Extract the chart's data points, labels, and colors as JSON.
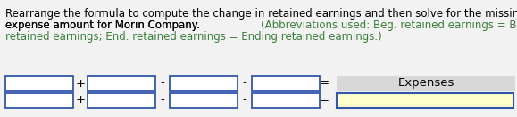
{
  "black_text_line1": "Rearrange the formula to compute the change in retained earnings and then solve for the missing",
  "black_text_line2": "expense amount for Morin Company. ",
  "green_text_line2": "(Abbreviations used: Beg. retained earnings = Beginning",
  "green_text_line3": "retained earnings; End. retained earnings = Ending retained earnings.)",
  "bg_color": "#f2f2f2",
  "box_border_color": "#3355aa",
  "box_fill_white": "#ffffff",
  "box_fill_yellow": "#ffffcc",
  "expenses_label": "Expenses",
  "gray_label_bg": "#d8d8d8",
  "operators_row1": [
    "+",
    "-",
    "-",
    "="
  ],
  "operators_row2": [
    "+",
    "-",
    "-",
    "="
  ],
  "text_fontsize": 8.5,
  "label_fontsize": 9.5
}
